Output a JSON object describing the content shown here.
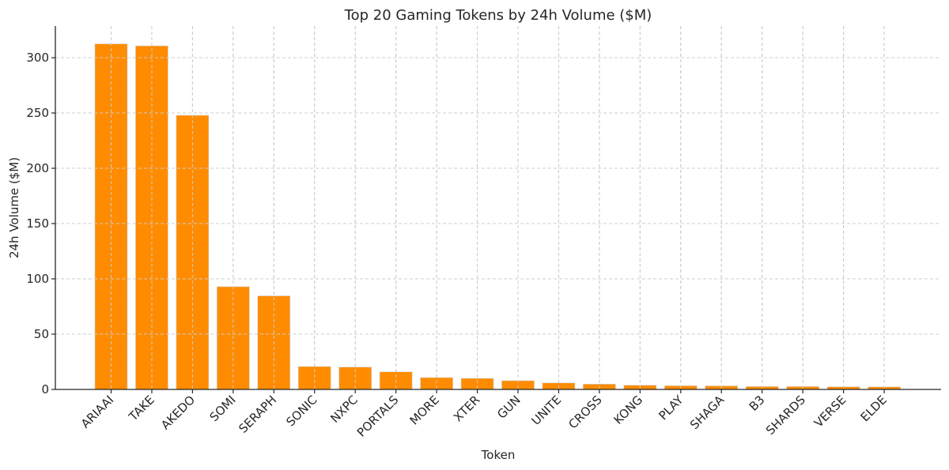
{
  "chart_data": {
    "type": "bar",
    "title": "Top 20 Gaming Tokens by 24h Volume ($M)",
    "xlabel": "Token",
    "ylabel": "24h Volume ($M)",
    "categories": [
      "ARIAAI",
      "TAKE",
      "AKEDO",
      "SOMI",
      "SERAPH",
      "SONIC",
      "NXPC",
      "PORTALS",
      "MORE",
      "XTER",
      "GUN",
      "UNITE",
      "CROSS",
      "KONG",
      "PLAY",
      "SHAGA",
      "B3",
      "SHARDS",
      "VERSE",
      "ELDE"
    ],
    "values": [
      312.5,
      310.7,
      247.9,
      92.9,
      84.6,
      20.7,
      20.2,
      15.9,
      10.7,
      10.0,
      7.9,
      5.9,
      4.8,
      3.8,
      3.3,
      3.2,
      2.6,
      2.6,
      2.4,
      2.3
    ],
    "ylim": [
      0,
      328.6
    ],
    "yticks": [
      0,
      50,
      100,
      150,
      200,
      250,
      300
    ],
    "grid": true,
    "legend": null,
    "bar_color": "#ff8c00",
    "xtick_rotation": 45
  }
}
